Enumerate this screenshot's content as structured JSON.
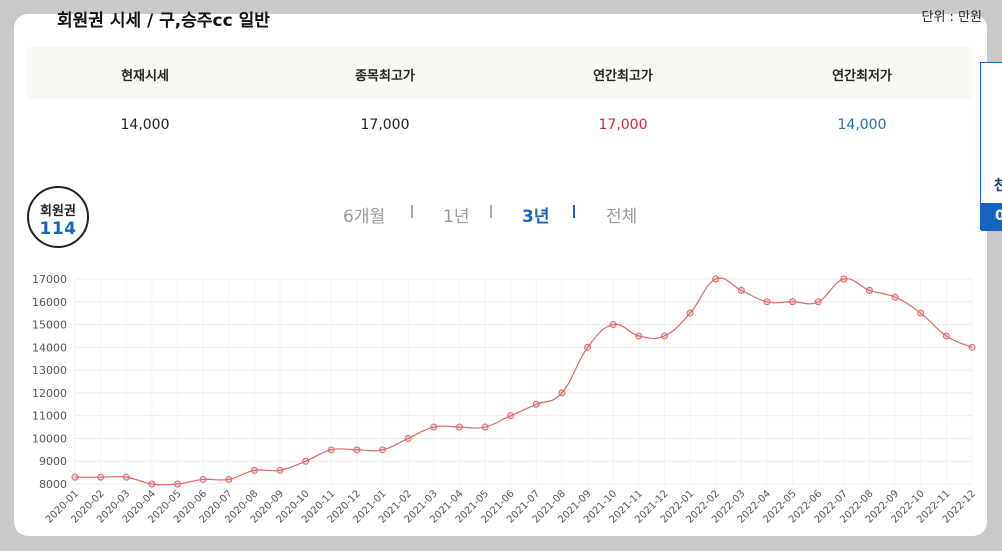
{
  "header": {
    "title": "회원권 시세 / 구,승주cc 일반",
    "unit": "단위 : 만원"
  },
  "stats": [
    {
      "label": "현재시세",
      "value": "14,000",
      "color": "#222222"
    },
    {
      "label": "종목최고가",
      "value": "17,000",
      "color": "#222222"
    },
    {
      "label": "연간최고가",
      "value": "17,000",
      "color": "#d12a3f"
    },
    {
      "label": "연간최저가",
      "value": "14,000",
      "color": "#2b6cae"
    }
  ],
  "badge": {
    "line1": "회원권",
    "line2": "114"
  },
  "tabs": [
    {
      "label": "6개월",
      "active": false
    },
    {
      "label": "1년",
      "active": false
    },
    {
      "label": "3년",
      "active": true
    },
    {
      "label": "전체",
      "active": false
    }
  ],
  "side_panel": {
    "text1": "천",
    "text2": "0"
  },
  "chart_data": {
    "type": "line",
    "title": "",
    "xlabel": "",
    "ylabel": "",
    "ylim": [
      8000,
      17000
    ],
    "yticks": [
      8000,
      9000,
      10000,
      11000,
      12000,
      13000,
      14000,
      15000,
      16000,
      17000
    ],
    "line_color": "#e06666",
    "grid": true,
    "x": [
      "2020-01",
      "2020-02",
      "2020-03",
      "2020-04",
      "2020-05",
      "2020-06",
      "2020-07",
      "2020-08",
      "2020-09",
      "2020-10",
      "2020-11",
      "2020-12",
      "2021-01",
      "2021-02",
      "2021-03",
      "2021-04",
      "2021-05",
      "2021-06",
      "2021-07",
      "2021-08",
      "2021-09",
      "2021-10",
      "2021-11",
      "2021-12",
      "2022-01",
      "2022-02",
      "2022-03",
      "2022-04",
      "2022-05",
      "2022-06",
      "2022-07",
      "2022-08",
      "2022-09",
      "2022-10",
      "2022-11",
      "2022-12"
    ],
    "values": [
      8300,
      8300,
      8300,
      8000,
      8000,
      8200,
      8200,
      8600,
      8600,
      9000,
      9500,
      9500,
      9500,
      10000,
      10500,
      10500,
      10500,
      11000,
      11500,
      12000,
      14000,
      15000,
      14500,
      14500,
      15500,
      17000,
      16500,
      16000,
      16000,
      16000,
      17000,
      16500,
      16200,
      15500,
      14500,
      14000
    ]
  }
}
